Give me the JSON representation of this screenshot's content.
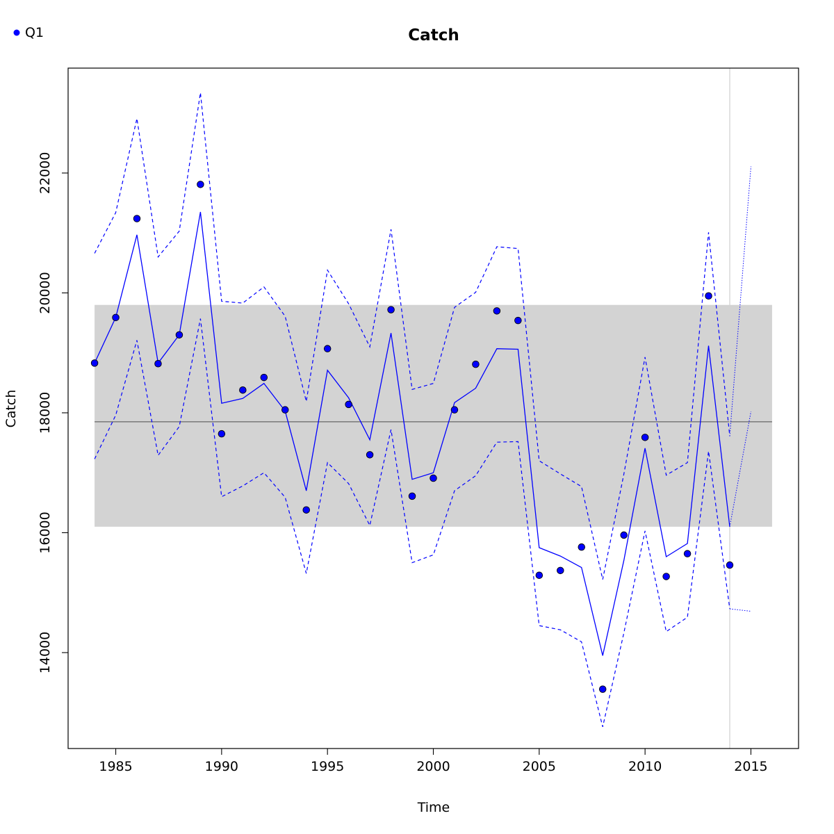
{
  "chart_data": {
    "type": "line",
    "title": "Catch",
    "xlabel": "Time",
    "ylabel": "Catch",
    "xlim": [
      1982.75,
      2017.25
    ],
    "ylim": [
      12400,
      23750
    ],
    "x_ticks": [
      1985,
      1990,
      1995,
      2000,
      2005,
      2010,
      2015
    ],
    "y_ticks": [
      14000,
      16000,
      18000,
      20000,
      22000
    ],
    "legend": {
      "position": "top-left",
      "label": "Q1"
    },
    "colors": {
      "series": "#0000ff",
      "band": "#d3d3d3",
      "mean": "#666666",
      "vline": "#d3d3d3",
      "frame": "#000000"
    },
    "reference_band": {
      "x_start": 1984,
      "x_end": 2016,
      "y_low": 16100,
      "y_high": 19800
    },
    "mean_line": 17850,
    "vertical_line_x": 2014,
    "observed_points": {
      "name": "Q1",
      "x": [
        1984,
        1985,
        1986,
        1987,
        1988,
        1989,
        1990,
        1991,
        1992,
        1993,
        1994,
        1995,
        1996,
        1997,
        1998,
        1999,
        2000,
        2001,
        2002,
        2003,
        2004,
        2005,
        2006,
        2007,
        2008,
        2009,
        2010,
        2011,
        2012,
        2013,
        2014
      ],
      "y": [
        18830,
        19590,
        21240,
        18820,
        19300,
        21810,
        17650,
        18380,
        18590,
        18050,
        16380,
        19070,
        18140,
        17300,
        19720,
        16610,
        16910,
        18050,
        18810,
        19700,
        19540,
        15290,
        15370,
        15760,
        13390,
        15960,
        17590,
        15270,
        15650,
        19950,
        15460
      ]
    },
    "fitted_line": {
      "x": [
        1984,
        1985,
        1986,
        1987,
        1988,
        1989,
        1990,
        1991,
        1992,
        1993,
        1994,
        1995,
        1996,
        1997,
        1998,
        1999,
        2000,
        2001,
        2002,
        2003,
        2004,
        2005,
        2006,
        2007,
        2008,
        2009,
        2010,
        2011,
        2012,
        2013,
        2014
      ],
      "y": [
        18830,
        19590,
        20970,
        18830,
        19300,
        21350,
        18160,
        18240,
        18490,
        18030,
        16700,
        18710,
        18250,
        17550,
        19330,
        16890,
        17000,
        18170,
        18410,
        19070,
        19060,
        15750,
        15610,
        15420,
        13950,
        15540,
        17410,
        15600,
        15820,
        19120,
        16100
      ]
    },
    "upper_bound": {
      "x": [
        1984,
        1985,
        1986,
        1987,
        1988,
        1989,
        1990,
        1991,
        1992,
        1993,
        1994,
        1995,
        1996,
        1997,
        1998,
        1999,
        2000,
        2001,
        2002,
        2003,
        2004,
        2005,
        2006,
        2007,
        2008,
        2009,
        2010,
        2011,
        2012,
        2013,
        2014
      ],
      "y": [
        20660,
        21340,
        22910,
        20600,
        21030,
        23340,
        19860,
        19830,
        20100,
        19610,
        18190,
        20380,
        19820,
        19100,
        21060,
        18390,
        18490,
        19760,
        20010,
        20770,
        20740,
        17200,
        16980,
        16770,
        15220,
        16980,
        18930,
        16960,
        17170,
        21010,
        17610
      ]
    },
    "lower_bound": {
      "x": [
        1984,
        1985,
        1986,
        1987,
        1988,
        1989,
        1990,
        1991,
        1992,
        1993,
        1994,
        1995,
        1996,
        1997,
        1998,
        1999,
        2000,
        2001,
        2002,
        2003,
        2004,
        2005,
        2006,
        2007,
        2008,
        2009,
        2010,
        2011,
        2012,
        2013,
        2014
      ],
      "y": [
        17230,
        17960,
        19210,
        17290,
        17770,
        19570,
        16600,
        16780,
        17000,
        16590,
        15320,
        17170,
        16820,
        16120,
        17720,
        15500,
        15630,
        16700,
        16950,
        17510,
        17520,
        14450,
        14380,
        14180,
        12760,
        14330,
        16030,
        14350,
        14590,
        17360,
        14730
      ]
    },
    "forecast": {
      "x": [
        2014,
        2015
      ],
      "mean": [
        16100,
        18020
      ],
      "upper": [
        17610,
        22110
      ],
      "lower": [
        14730,
        14690
      ]
    }
  }
}
